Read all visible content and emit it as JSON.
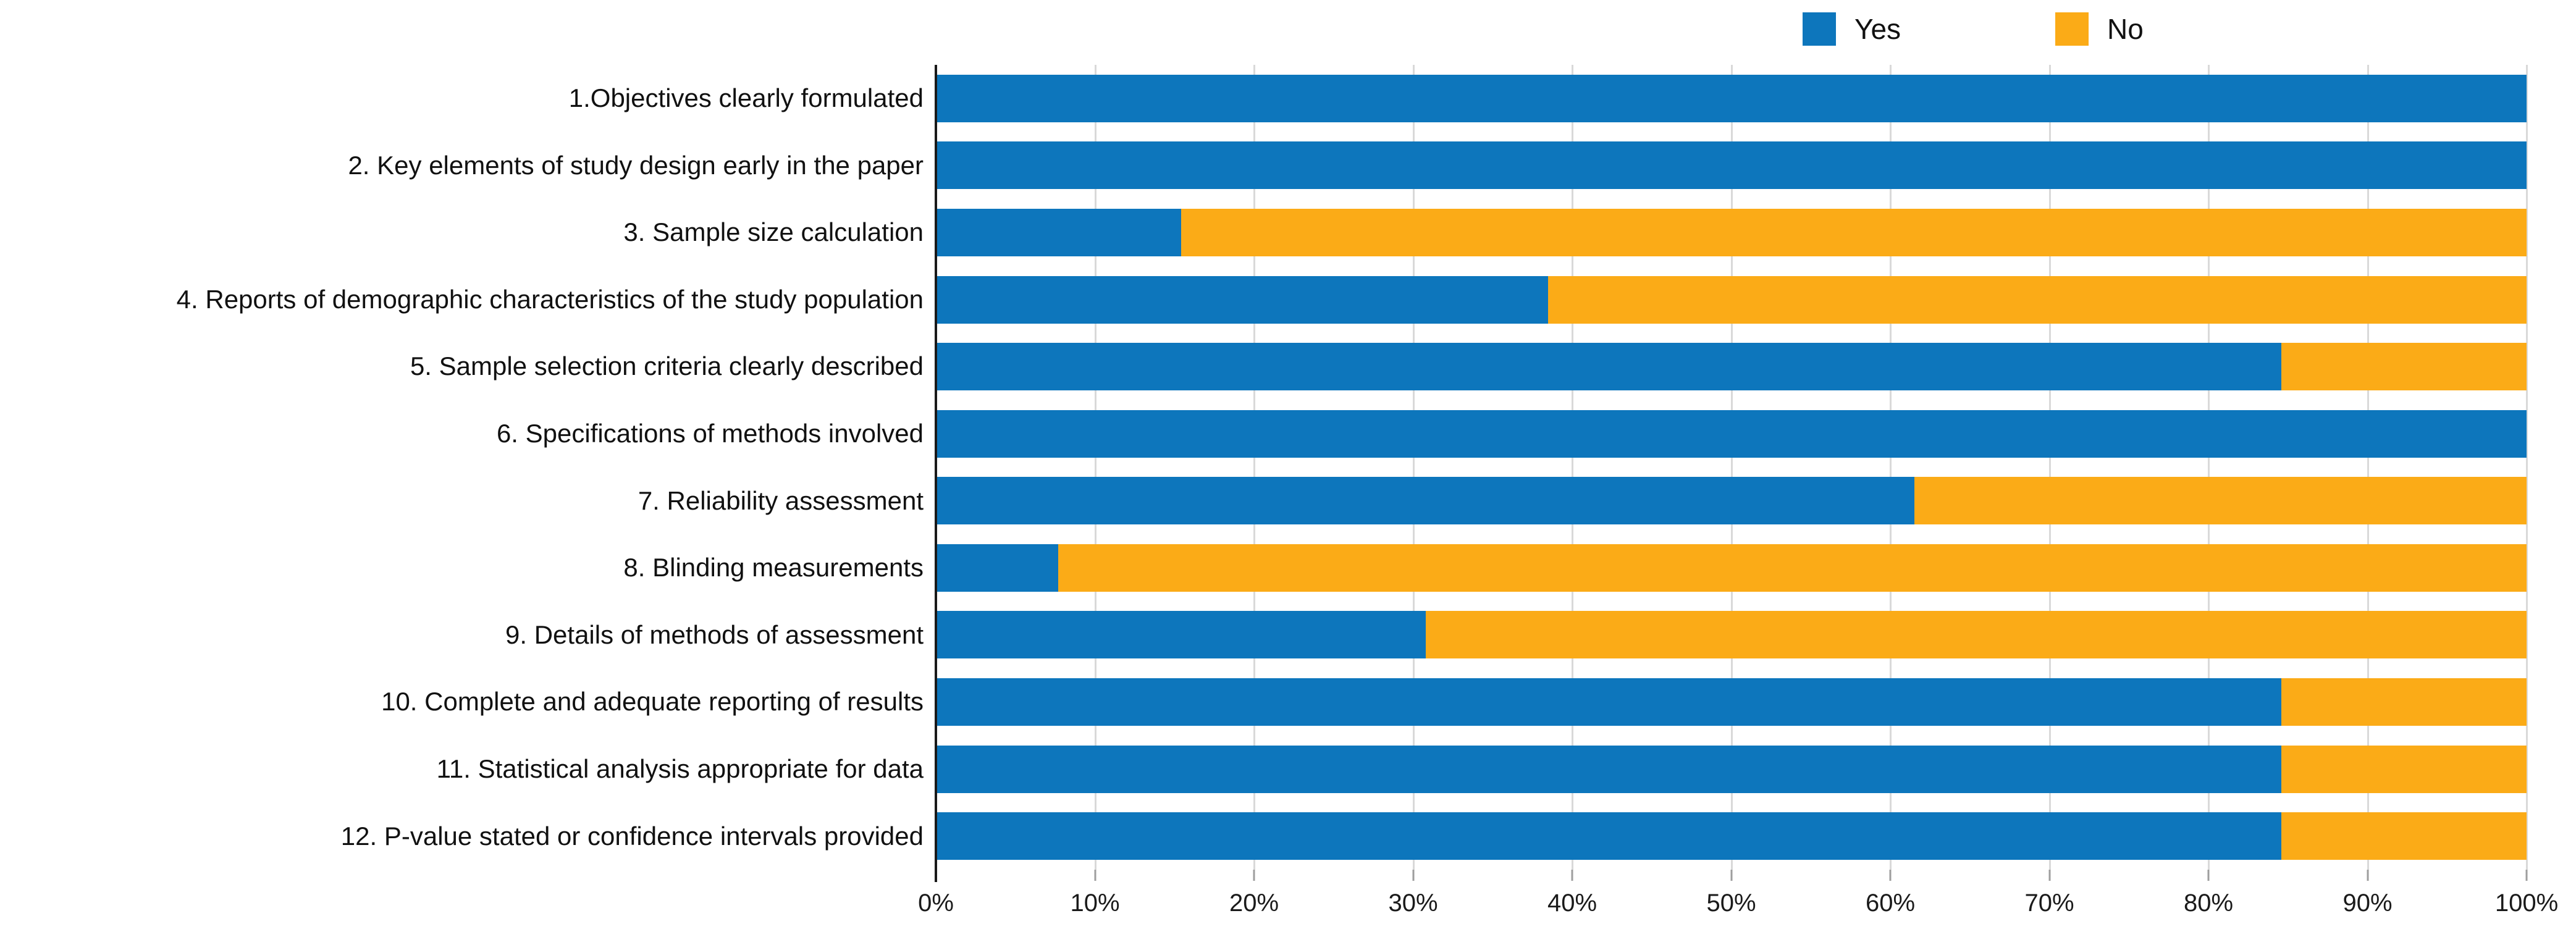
{
  "legend": {
    "items": [
      {
        "label": "Yes",
        "color": "#0D76BC"
      },
      {
        "label": "No",
        "color": "#FBAB17"
      }
    ]
  },
  "chart_data": {
    "type": "bar",
    "variant": "stacked-horizontal-100percent",
    "title": "",
    "categories": [
      "1.Objectives clearly formulated",
      "2. Key elements of study design early in the paper",
      "3. Sample size calculation",
      "4. Reports of demographic characteristics of the study population",
      "5. Sample selection criteria clearly described",
      "6. Specifications of methods involved",
      "7. Reliability assessment",
      "8. Blinding measurements",
      "9. Details of methods of assessment",
      "10. Complete and adequate reporting of results",
      "11. Statistical analysis appropriate for data",
      "12. P-value stated or confidence intervals provided"
    ],
    "series": [
      {
        "name": "Yes",
        "color": "#0D76BC",
        "values": [
          100,
          100,
          15.4,
          38.5,
          84.6,
          100,
          61.5,
          7.7,
          30.8,
          84.6,
          84.6,
          84.6
        ]
      },
      {
        "name": "No",
        "color": "#FBAB17",
        "values": [
          0,
          0,
          84.6,
          61.5,
          15.4,
          0,
          38.5,
          92.3,
          69.2,
          15.4,
          15.4,
          15.4
        ]
      }
    ],
    "x_ticks": [
      "0%",
      "10%",
      "20%",
      "30%",
      "40%",
      "50%",
      "60%",
      "70%",
      "80%",
      "90%",
      "100%"
    ],
    "xlim": [
      0,
      100
    ],
    "grid": true,
    "gridline_color": "#D9D9D9",
    "axis_color": "#1A1A1A",
    "legend_position": "top-right"
  }
}
